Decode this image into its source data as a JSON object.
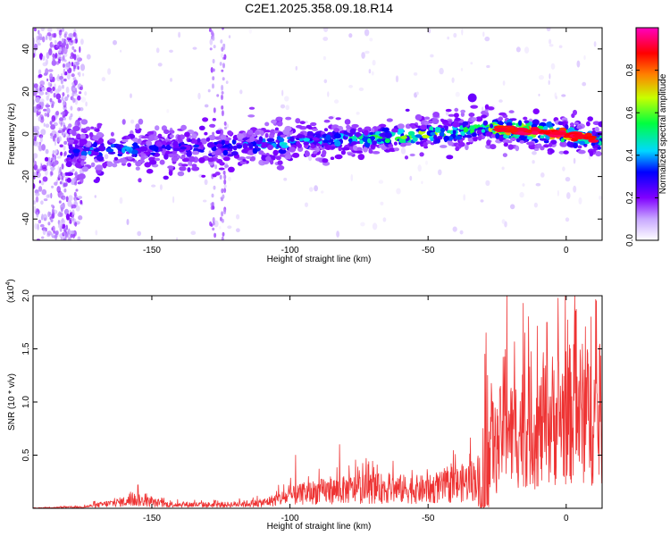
{
  "figure": {
    "title": "C2E1.2025.358.09.18.R14"
  },
  "chart_data": [
    {
      "type": "heatmap",
      "xlabel": "Height of straight line (km)",
      "ylabel": "Frequency (Hz)",
      "xlim": [
        -193,
        13
      ],
      "ylim": [
        -50,
        50
      ],
      "xticks": [
        "-150",
        "-100",
        "-50",
        "0"
      ],
      "yticks": [
        "-40",
        "-20",
        "0",
        "20",
        "40"
      ],
      "colorbar": {
        "label": "Normalized spectral amplitude",
        "range": [
          0,
          1
        ],
        "ticks": [
          "0.0",
          "0.2",
          "0.4",
          "0.6",
          "0.8"
        ],
        "colors": [
          "#ffffff",
          "#c8a8ff",
          "#8000ff",
          "#0000ff",
          "#00d8ff",
          "#00ff40",
          "#c8ff00",
          "#ff8000",
          "#ff0000",
          "#ff00c0"
        ]
      },
      "ridge": {
        "x": [
          -178,
          -170,
          -160,
          -150,
          -140,
          -130,
          -120,
          -110,
          -100,
          -90,
          -80,
          -70,
          -60,
          -50,
          -40,
          -30,
          -20,
          -10,
          0,
          12
        ],
        "freq": [
          -8,
          -8,
          -7.5,
          -7,
          -6.5,
          -6.5,
          -6,
          -5,
          -4,
          -3,
          -2.5,
          -2,
          -1,
          0,
          1,
          3,
          2,
          1,
          0,
          -3
        ],
        "amplitude": [
          0.3,
          0.35,
          0.35,
          0.3,
          0.3,
          0.3,
          0.35,
          0.35,
          0.4,
          0.4,
          0.45,
          0.5,
          0.55,
          0.6,
          0.5,
          0.5,
          0.8,
          0.85,
          0.9,
          0.6
        ]
      }
    },
    {
      "type": "line",
      "xlabel": "Height of straight line (km)",
      "ylabel": "SNR (10 * v/v)",
      "y_multiplier_label": "(x10",
      "y_multiplier_exp": "4",
      "xlim": [
        -193,
        13
      ],
      "ylim": [
        0,
        2.0
      ],
      "xticks": [
        "-150",
        "-100",
        "-50",
        "0"
      ],
      "yticks": [
        "0.5",
        "1.0",
        "1.5",
        "2.0"
      ],
      "color": "#ee3333",
      "envelope": {
        "x": [
          -193,
          -175,
          -160,
          -155,
          -145,
          -125,
          -110,
          -100,
          -90,
          -70,
          -50,
          -40,
          -32,
          -30,
          -28,
          -25,
          -22,
          -20,
          -15,
          -10,
          -5,
          0,
          5,
          10,
          13
        ],
        "y": [
          0.005,
          0.02,
          0.1,
          0.12,
          0.06,
          0.05,
          0.08,
          0.18,
          0.25,
          0.3,
          0.28,
          0.35,
          0.45,
          0.9,
          1.2,
          0.8,
          1.5,
          1.1,
          1.25,
          1.15,
          1.35,
          1.4,
          1.45,
          1.35,
          1.3
        ]
      },
      "peaks": [
        {
          "x": -29,
          "y": 1.65
        },
        {
          "x": -28.5,
          "y": 1.25
        },
        {
          "x": -21.5,
          "y": 2.0
        },
        {
          "x": -15,
          "y": 1.65
        },
        {
          "x": -7,
          "y": 1.75
        },
        {
          "x": 3,
          "y": 1.7
        },
        {
          "x": 9,
          "y": 1.8
        },
        {
          "x": -82,
          "y": 0.6
        },
        {
          "x": -98,
          "y": 0.5
        },
        {
          "x": -155,
          "y": 0.22
        }
      ]
    }
  ]
}
